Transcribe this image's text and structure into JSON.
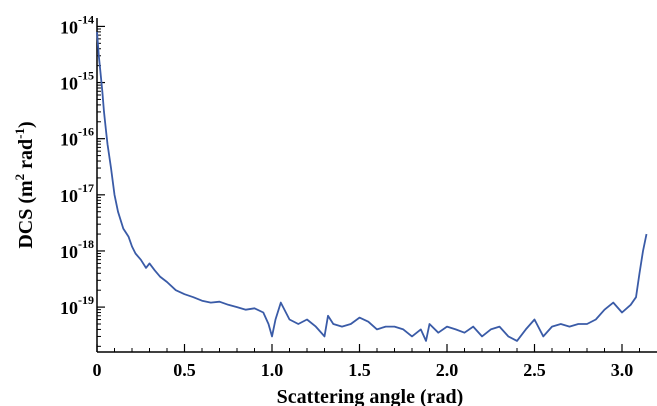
{
  "chart_data": {
    "type": "line",
    "title": "",
    "xlabel": "Scattering angle (rad)",
    "ylabel": {
      "prefix": "DCS (m",
      "exp1": "2",
      "mid": " rad",
      "exp2": "-1",
      "suffix": ")"
    },
    "xlim": [
      0,
      3.2
    ],
    "ylim_log10": [
      -19.8,
      -13.85
    ],
    "y_scale": "log",
    "grid": false,
    "legend": "none",
    "line_color": "#3a5ba7",
    "x_ticks": [
      {
        "value": 0.0,
        "label": "0"
      },
      {
        "value": 0.5,
        "label": "0.5"
      },
      {
        "value": 1.0,
        "label": "1.0"
      },
      {
        "value": 1.5,
        "label": "1.5"
      },
      {
        "value": 2.0,
        "label": "2.0"
      },
      {
        "value": 2.5,
        "label": "2.5"
      },
      {
        "value": 3.0,
        "label": "3.0"
      }
    ],
    "y_ticks": [
      {
        "value": 1e-14,
        "base": "10",
        "exp": "-14"
      },
      {
        "value": 1e-15,
        "base": "10",
        "exp": "-15"
      },
      {
        "value": 1e-16,
        "base": "10",
        "exp": "-16"
      },
      {
        "value": 1e-17,
        "base": "10",
        "exp": "-17"
      },
      {
        "value": 1e-18,
        "base": "10",
        "exp": "-18"
      },
      {
        "value": 1e-19,
        "base": "10",
        "exp": "-19"
      }
    ],
    "series": [
      {
        "x": [
          0.0,
          0.01,
          0.02,
          0.03,
          0.04,
          0.05,
          0.06,
          0.08,
          0.1,
          0.12,
          0.15,
          0.18,
          0.2,
          0.22,
          0.25,
          0.28,
          0.3,
          0.33,
          0.36,
          0.4,
          0.45,
          0.5,
          0.55,
          0.6,
          0.65,
          0.7,
          0.75,
          0.8,
          0.85,
          0.9,
          0.95,
          0.98,
          1.0,
          1.02,
          1.05,
          1.1,
          1.15,
          1.2,
          1.25,
          1.3,
          1.32,
          1.35,
          1.4,
          1.45,
          1.5,
          1.55,
          1.6,
          1.65,
          1.7,
          1.75,
          1.8,
          1.85,
          1.88,
          1.9,
          1.95,
          2.0,
          2.05,
          2.1,
          2.15,
          2.2,
          2.25,
          2.3,
          2.35,
          2.4,
          2.45,
          2.5,
          2.55,
          2.6,
          2.65,
          2.7,
          2.75,
          2.8,
          2.85,
          2.9,
          2.95,
          3.0,
          3.05,
          3.08,
          3.1,
          3.12,
          3.14
        ],
        "y": [
          8e-15,
          3e-15,
          1.5e-15,
          7e-16,
          3e-16,
          1.5e-16,
          8e-17,
          3e-17,
          1e-17,
          5e-18,
          2.5e-18,
          1.8e-18,
          1.2e-18,
          9e-19,
          7e-19,
          5e-19,
          6e-19,
          4.5e-19,
          3.5e-19,
          2.8e-19,
          2e-19,
          1.7e-19,
          1.5e-19,
          1.3e-19,
          1.2e-19,
          1.25e-19,
          1.1e-19,
          1e-19,
          9e-20,
          9.5e-20,
          8e-20,
          5e-20,
          3e-20,
          6e-20,
          1.2e-19,
          6e-20,
          5e-20,
          6e-20,
          4.5e-20,
          3e-20,
          7e-20,
          5e-20,
          4.5e-20,
          5e-20,
          6.5e-20,
          5.5e-20,
          4e-20,
          4.5e-20,
          4.5e-20,
          4e-20,
          3e-20,
          4e-20,
          2.5e-20,
          5e-20,
          3.5e-20,
          4.5e-20,
          4e-20,
          3.5e-20,
          4.5e-20,
          3e-20,
          4e-20,
          4.5e-20,
          3e-20,
          2.5e-20,
          4e-20,
          6e-20,
          3e-20,
          4.5e-20,
          5e-20,
          4.5e-20,
          5e-20,
          5e-20,
          6e-20,
          9e-20,
          1.2e-19,
          8e-20,
          1.1e-19,
          1.5e-19,
          4e-19,
          1e-18,
          2e-18
        ]
      }
    ]
  }
}
